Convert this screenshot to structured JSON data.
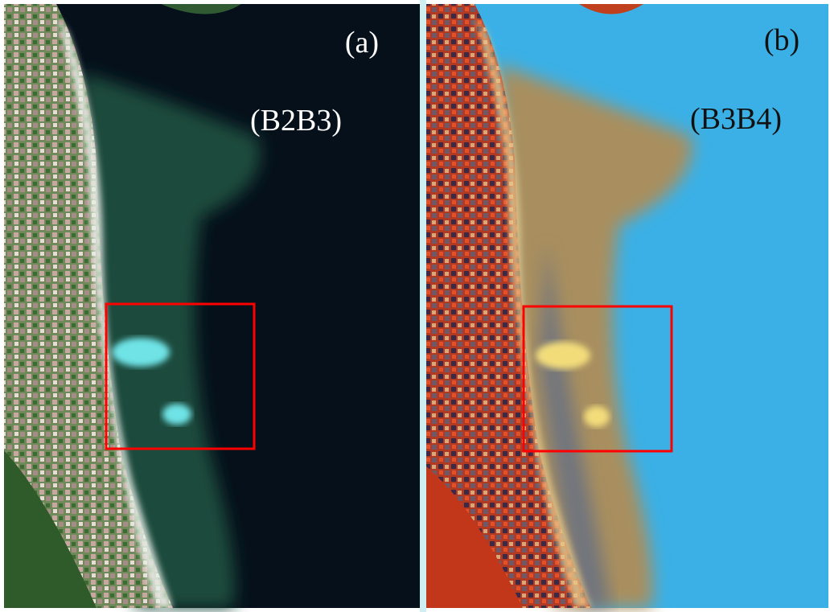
{
  "panels": [
    {
      "label": "(a)",
      "bands": "(B2B3)"
    },
    {
      "label": "(b)",
      "bands": "(B3B4)"
    }
  ]
}
